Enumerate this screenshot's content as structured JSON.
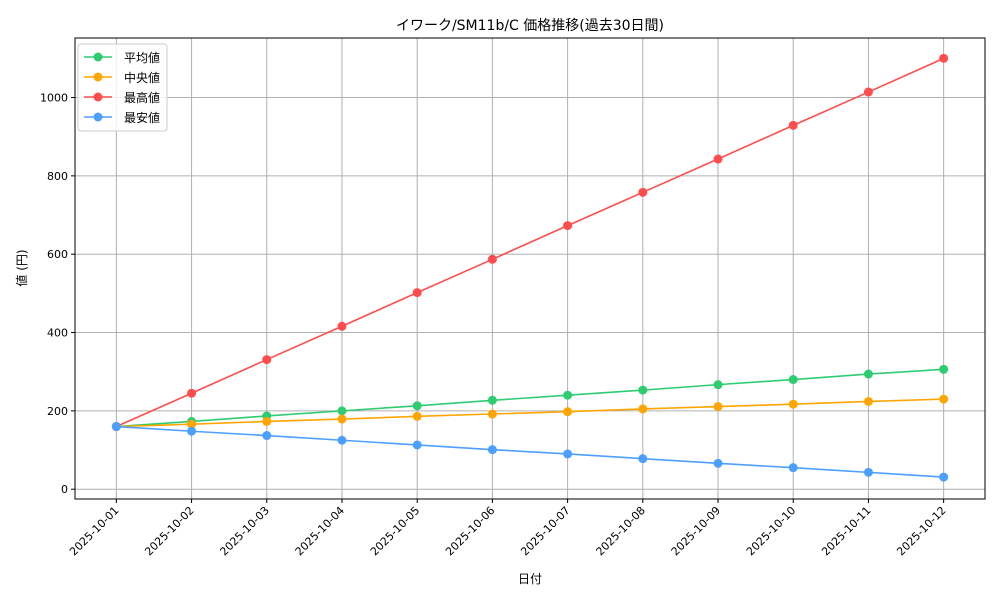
{
  "chart_data": {
    "type": "line",
    "title": "イワーク/SM11b/C 価格推移(過去30日間)",
    "xlabel": "日付",
    "ylabel": "値 (円)",
    "categories": [
      "2025-10-01",
      "2025-10-02",
      "2025-10-03",
      "2025-10-04",
      "2025-10-05",
      "2025-10-06",
      "2025-10-07",
      "2025-10-08",
      "2025-10-09",
      "2025-10-10",
      "2025-10-11",
      "2025-10-12"
    ],
    "ylim": [
      -25,
      1152
    ],
    "yticks": [
      0,
      200,
      400,
      600,
      800,
      1000
    ],
    "grid": true,
    "legend_position": "top-left",
    "series": [
      {
        "name": "平均値",
        "color": "#2ecc71",
        "values": [
          160,
          173,
          187,
          200,
          213,
          227,
          240,
          253,
          267,
          280,
          294,
          306
        ]
      },
      {
        "name": "中央値",
        "color": "#ffa500",
        "values": [
          160,
          166,
          173,
          179,
          186,
          192,
          198,
          205,
          211,
          217,
          224,
          230
        ]
      },
      {
        "name": "最高値",
        "color": "#ff4d4d",
        "values": [
          160,
          245,
          331,
          416,
          502,
          587,
          673,
          758,
          843,
          929,
          1014,
          1100
        ]
      },
      {
        "name": "最安値",
        "color": "#4d9fff",
        "values": [
          160,
          148,
          137,
          125,
          113,
          101,
          90,
          78,
          66,
          55,
          43,
          31
        ]
      }
    ]
  }
}
